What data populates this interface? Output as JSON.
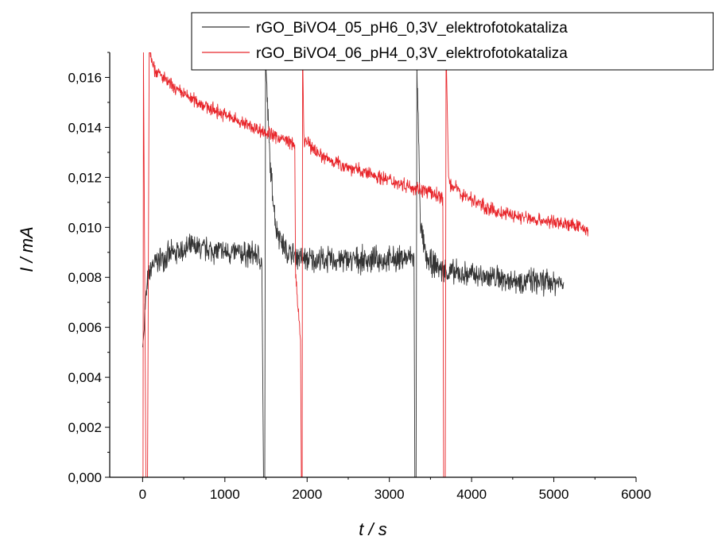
{
  "chart_data": {
    "type": "line",
    "xlabel": "t / s",
    "ylabel": "I / mA",
    "xlim": [
      -400,
      6000
    ],
    "ylim": [
      0,
      0.017
    ],
    "x_ticks": [
      0,
      1000,
      2000,
      3000,
      4000,
      5000,
      6000
    ],
    "x_tick_labels": [
      "0",
      "1000",
      "2000",
      "3000",
      "4000",
      "5000",
      "6000"
    ],
    "y_ticks": [
      0,
      0.002,
      0.004,
      0.006,
      0.008,
      0.01,
      0.012,
      0.014,
      0.016
    ],
    "y_tick_labels": [
      "0,000",
      "0,002",
      "0,004",
      "0,006",
      "0,008",
      "0,010",
      "0,012",
      "0,014",
      "0,016"
    ],
    "grid": false,
    "legend_position": "top-right",
    "series": [
      {
        "name": "rGO_BiVO4_05_pH6_0,3V_elektrofotokataliza",
        "color": "#333333",
        "noise": 0.00045,
        "points": [
          [
            0,
            0.0052
          ],
          [
            20,
            0.0065
          ],
          [
            60,
            0.0078
          ],
          [
            120,
            0.0085
          ],
          [
            250,
            0.0088
          ],
          [
            600,
            0.0092
          ],
          [
            1000,
            0.009
          ],
          [
            1400,
            0.0089
          ],
          [
            1450,
            0.0085
          ],
          [
            1470,
            0.0
          ],
          [
            1485,
            0.0
          ],
          [
            1495,
            0.0167
          ],
          [
            1550,
            0.0125
          ],
          [
            1620,
            0.01
          ],
          [
            1750,
            0.009
          ],
          [
            2000,
            0.0087
          ],
          [
            2500,
            0.0087
          ],
          [
            3000,
            0.0087
          ],
          [
            3300,
            0.0088
          ],
          [
            3310,
            0.0
          ],
          [
            3325,
            0.0
          ],
          [
            3335,
            0.0165
          ],
          [
            3380,
            0.01
          ],
          [
            3450,
            0.0087
          ],
          [
            3700,
            0.0082
          ],
          [
            4000,
            0.0081
          ],
          [
            4500,
            0.0079
          ],
          [
            5000,
            0.0078
          ],
          [
            5120,
            0.0078
          ]
        ]
      },
      {
        "name": "rGO_BiVO4_06_pH4_0,3V_elektrofotokataliza",
        "color": "#e8262b",
        "noise": 0.00025,
        "points": [
          [
            -10,
            0.0
          ],
          [
            5,
            0.0
          ],
          [
            10,
            0.017
          ],
          [
            40,
            0.0
          ],
          [
            60,
            0.0
          ],
          [
            80,
            0.0172
          ],
          [
            150,
            0.0163
          ],
          [
            400,
            0.0155
          ],
          [
            800,
            0.0148
          ],
          [
            1200,
            0.0142
          ],
          [
            1500,
            0.0138
          ],
          [
            1800,
            0.0134
          ],
          [
            1850,
            0.0133
          ],
          [
            1860,
            0.008
          ],
          [
            1920,
            0.0055
          ],
          [
            1930,
            0.0
          ],
          [
            1940,
            0.0
          ],
          [
            1945,
            0.0172
          ],
          [
            1960,
            0.0135
          ],
          [
            2200,
            0.0128
          ],
          [
            2600,
            0.0123
          ],
          [
            3000,
            0.0119
          ],
          [
            3400,
            0.0115
          ],
          [
            3650,
            0.0112
          ],
          [
            3660,
            0.0
          ],
          [
            3680,
            0.0
          ],
          [
            3690,
            0.0172
          ],
          [
            3720,
            0.0118
          ],
          [
            3900,
            0.0113
          ],
          [
            4300,
            0.0106
          ],
          [
            4800,
            0.0103
          ],
          [
            5200,
            0.0101
          ],
          [
            5420,
            0.0099
          ]
        ]
      }
    ]
  }
}
